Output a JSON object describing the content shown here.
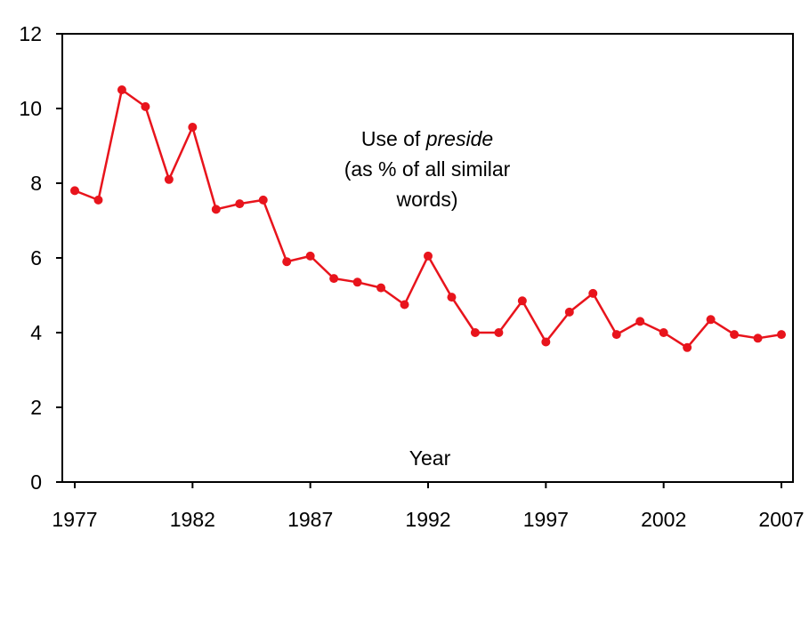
{
  "chart_data": {
    "type": "line",
    "annotation": {
      "prefix": "Use of ",
      "italic_word": "preside",
      "line2": "(as % of all similar",
      "line3": "words)"
    },
    "xlabel": "Year",
    "ylabel": "",
    "ylim": [
      0,
      12
    ],
    "y_ticks": [
      0,
      2,
      4,
      6,
      8,
      10,
      12
    ],
    "xlim": [
      1977,
      2007
    ],
    "x_ticks": [
      1977,
      1982,
      1987,
      1992,
      1997,
      2002,
      2007
    ],
    "grid": false,
    "series": [
      {
        "color": "#e8141c",
        "x": [
          1977,
          1978,
          1979,
          1980,
          1981,
          1982,
          1983,
          1984,
          1985,
          1986,
          1987,
          1988,
          1989,
          1990,
          1991,
          1992,
          1993,
          1994,
          1995,
          1996,
          1997,
          1998,
          1999,
          2000,
          2001,
          2002,
          2003,
          2004,
          2005,
          2006,
          2007
        ],
        "values": [
          7.8,
          7.55,
          10.5,
          10.05,
          8.1,
          9.5,
          7.3,
          7.45,
          7.55,
          5.9,
          6.05,
          5.45,
          5.35,
          5.2,
          4.75,
          6.05,
          4.95,
          4.0,
          4.0,
          4.85,
          3.75,
          4.55,
          5.05,
          3.95,
          4.3,
          4.0,
          3.6,
          4.35,
          3.95,
          3.85,
          3.95
        ]
      }
    ]
  }
}
